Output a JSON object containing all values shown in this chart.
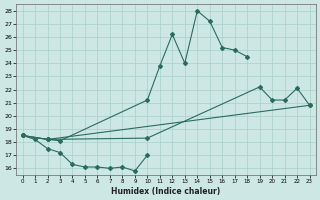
{
  "xlabel": "Humidex (Indice chaleur)",
  "bg_color": "#cde8e4",
  "grid_color": "#a8cfc8",
  "line_color": "#2a6b60",
  "xlim": [
    -0.5,
    23.5
  ],
  "ylim": [
    15.5,
    28.5
  ],
  "xticks": [
    0,
    1,
    2,
    3,
    4,
    5,
    6,
    7,
    8,
    9,
    10,
    11,
    12,
    13,
    14,
    15,
    16,
    17,
    18,
    19,
    20,
    21,
    22,
    23
  ],
  "yticks": [
    16,
    17,
    18,
    19,
    20,
    21,
    22,
    23,
    24,
    25,
    26,
    27,
    28
  ],
  "lines": [
    {
      "x": [
        0,
        1,
        2,
        3,
        4,
        5,
        6,
        7,
        8,
        9,
        10
      ],
      "y": [
        18.5,
        18.2,
        17.5,
        17.2,
        16.3,
        16.1,
        16.1,
        16.0,
        16.1,
        15.8,
        17.0
      ]
    },
    {
      "x": [
        0,
        2,
        3,
        10,
        11,
        12,
        13,
        14,
        15,
        16,
        17,
        18
      ],
      "y": [
        18.5,
        18.2,
        18.1,
        21.2,
        23.8,
        26.2,
        24.0,
        28.0,
        27.2,
        25.2,
        25.0,
        24.5
      ]
    },
    {
      "x": [
        0,
        2,
        10,
        19,
        20,
        21,
        22,
        23
      ],
      "y": [
        18.5,
        18.2,
        18.3,
        22.2,
        21.2,
        21.2,
        22.1,
        20.8
      ]
    },
    {
      "x": [
        0,
        2,
        23
      ],
      "y": [
        18.5,
        18.2,
        20.8
      ]
    }
  ]
}
